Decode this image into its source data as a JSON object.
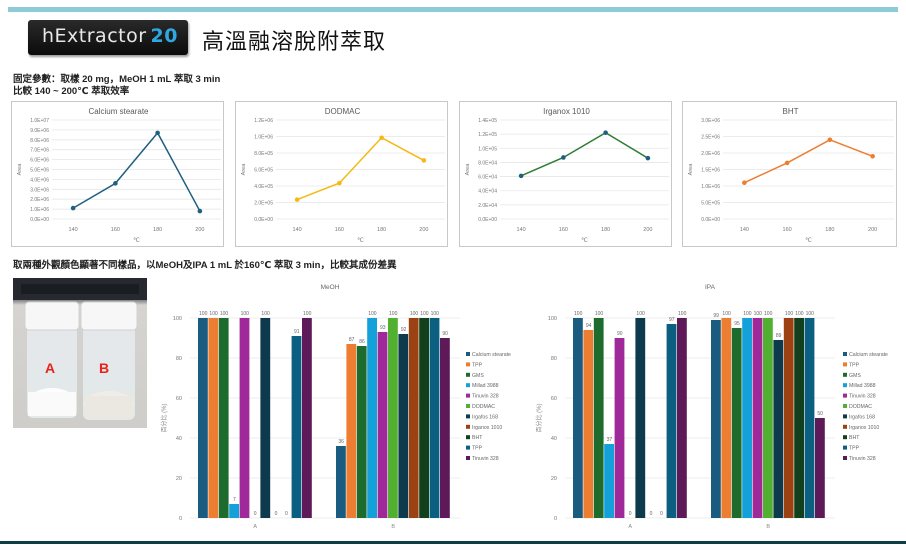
{
  "header": {
    "logo_text": "hExtractor",
    "logo_number": "20",
    "title": "高溫融溶脫附萃取"
  },
  "notes": {
    "fixed_params_line1": "固定參數：取樣 20 mg，MeOH 1 mL 萃取 3 min",
    "fixed_params_line2": "比較 140 ~ 200℃ 萃取效率",
    "comparison": "取兩種外觀顏色顯著不同樣品，以MeOH及IPA 1 mL 於160℃ 萃取 3 min，比較其成份差異"
  },
  "photo": {
    "label_a": "A",
    "label_b": "B"
  },
  "chart_data": [
    {
      "type": "line",
      "title": "Calcium stearate",
      "xlabel": "℃",
      "ylabel": "Area",
      "categories": [
        "140",
        "160",
        "180",
        "200"
      ],
      "values": [
        1100000,
        3600000,
        8700000,
        800000
      ],
      "ylim": [
        0,
        10000000
      ],
      "yticks": [
        "0.0E+00",
        "1.0E+06",
        "2.0E+06",
        "3.0E+06",
        "4.0E+06",
        "5.0E+06",
        "6.0E+06",
        "7.0E+06",
        "8.0E+06",
        "9.0E+06",
        "1.0E+07"
      ],
      "color": "#1f5f7f",
      "grid": true
    },
    {
      "type": "line",
      "title": "DODMAC",
      "xlabel": "℃",
      "ylabel": "Area",
      "categories": [
        "140",
        "160",
        "180",
        "200"
      ],
      "values": [
        235000,
        435000,
        985000,
        710000
      ],
      "ylim": [
        0,
        1200000
      ],
      "yticks": [
        "0.0E+00",
        "2.0E+05",
        "4.0E+05",
        "6.0E+05",
        "8.0E+05",
        "1.0E+06",
        "1.2E+06"
      ],
      "color": "#f5b915",
      "grid": true
    },
    {
      "type": "line",
      "title": "Irganox 1010",
      "xlabel": "℃",
      "ylabel": "Area",
      "categories": [
        "140",
        "160",
        "180",
        "200"
      ],
      "values": [
        61000,
        87000,
        122000,
        86000
      ],
      "ylim": [
        0,
        140000
      ],
      "yticks": [
        "0.0E+00",
        "2.0E+04",
        "4.0E+04",
        "6.0E+04",
        "8.0E+04",
        "1.0E+05",
        "1.2E+05",
        "1.4E+05"
      ],
      "color": "#2e7d32",
      "marker_color": "#1f5f7f",
      "grid": true
    },
    {
      "type": "line",
      "title": "BHT",
      "xlabel": "℃",
      "ylabel": "Area",
      "categories": [
        "140",
        "160",
        "180",
        "200"
      ],
      "values": [
        1100000,
        1700000,
        2400000,
        1900000
      ],
      "ylim": [
        0,
        3000000
      ],
      "yticks": [
        "0.0E+00",
        "5.0E+05",
        "1.0E+06",
        "1.5E+06",
        "2.0E+06",
        "2.5E+06",
        "3.0E+06"
      ],
      "color": "#ed7d31",
      "grid": true
    },
    {
      "type": "bar",
      "title": "MeOH",
      "xlabel": "",
      "ylabel": "百分比 (%)",
      "categories": [
        "A",
        "B"
      ],
      "ylim": [
        0,
        100
      ],
      "yticks": [
        "0",
        "20",
        "40",
        "60",
        "80",
        "100"
      ],
      "legend_position": "right",
      "series": [
        {
          "name": "Calcium stearate",
          "color": "#1a5c80",
          "values": [
            100,
            36
          ]
        },
        {
          "name": "TPP",
          "color": "#ed7d31",
          "values": [
            100,
            87
          ]
        },
        {
          "name": "GMS",
          "color": "#1e6b2e",
          "values": [
            100,
            86
          ]
        },
        {
          "name": "Millad 3988",
          "color": "#14a0d8",
          "values": [
            7,
            100
          ]
        },
        {
          "name": "Tinuvin 328",
          "color": "#a0299a",
          "values": [
            100,
            93
          ]
        },
        {
          "name": "DODMAC",
          "color": "#52b030",
          "values": [
            0,
            100
          ]
        },
        {
          "name": "Irgafos 168",
          "color": "#0e3a4e",
          "values": [
            100,
            92
          ]
        },
        {
          "name": "Irganox 1010",
          "color": "#9c4212",
          "values": [
            0,
            100
          ]
        },
        {
          "name": "BHT",
          "color": "#123f1c",
          "values": [
            0,
            100
          ]
        },
        {
          "name": "TPP",
          "color": "#0b5f80",
          "values": [
            91,
            100
          ]
        },
        {
          "name": "Tinuvin 328",
          "color": "#5e1a58",
          "values": [
            100,
            90
          ]
        }
      ]
    },
    {
      "type": "bar",
      "title": "IPA",
      "xlabel": "",
      "ylabel": "百分比 (%)",
      "categories": [
        "A",
        "B"
      ],
      "ylim": [
        0,
        100
      ],
      "yticks": [
        "0",
        "20",
        "40",
        "60",
        "80",
        "100"
      ],
      "legend_position": "right",
      "series": [
        {
          "name": "Calcium stearate",
          "color": "#1a5c80",
          "values": [
            100,
            99
          ]
        },
        {
          "name": "TPP",
          "color": "#ed7d31",
          "values": [
            94,
            100
          ]
        },
        {
          "name": "GMS",
          "color": "#1e6b2e",
          "values": [
            100,
            95
          ]
        },
        {
          "name": "Millad 3988",
          "color": "#14a0d8",
          "values": [
            37,
            100
          ]
        },
        {
          "name": "Tinuvin 328",
          "color": "#a0299a",
          "values": [
            90,
            100
          ]
        },
        {
          "name": "DODMAC",
          "color": "#52b030",
          "values": [
            0,
            100
          ]
        },
        {
          "name": "Irgafos 168",
          "color": "#0e3a4e",
          "values": [
            100,
            89
          ]
        },
        {
          "name": "Irganox 1010",
          "color": "#9c4212",
          "values": [
            0,
            100
          ]
        },
        {
          "name": "BHT",
          "color": "#123f1c",
          "values": [
            0,
            100
          ]
        },
        {
          "name": "TPP",
          "color": "#0b5f80",
          "values": [
            97,
            100
          ]
        },
        {
          "name": "Tinuvin 328",
          "color": "#5e1a58",
          "values": [
            100,
            50
          ]
        }
      ]
    }
  ]
}
